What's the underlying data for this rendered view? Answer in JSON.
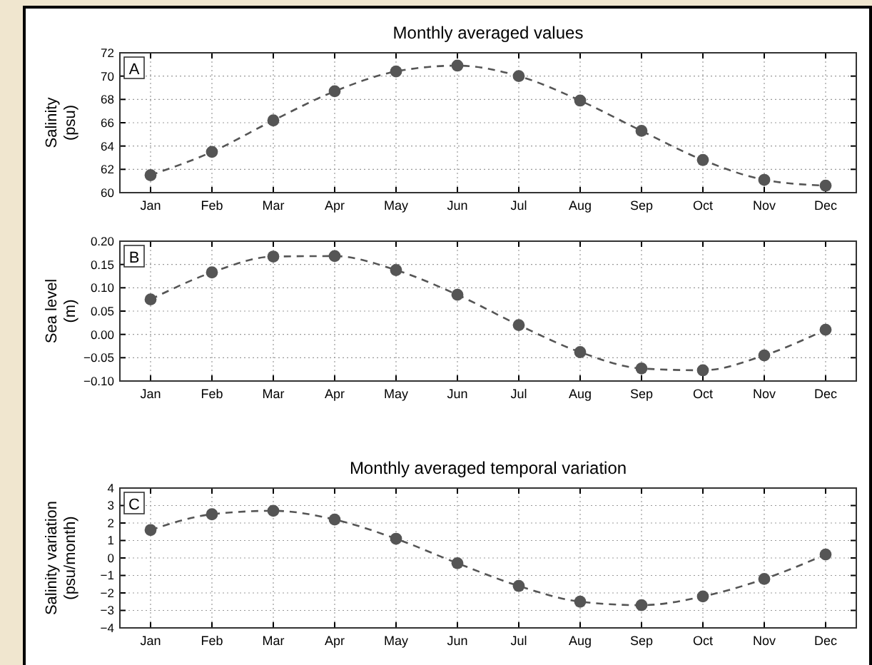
{
  "chart_data": [
    {
      "type": "line",
      "title": "Monthly averaged values",
      "ylabel": "Salinity\n(psu)",
      "annotations": [
        "A"
      ],
      "categories": [
        "Jan",
        "Feb",
        "Mar",
        "Apr",
        "May",
        "Jun",
        "Jul",
        "Aug",
        "Sep",
        "Oct",
        "Nov",
        "Dec"
      ],
      "series": [
        {
          "color": "#555555",
          "values": [
            61.5,
            63.5,
            66.2,
            68.7,
            70.4,
            70.9,
            70.0,
            67.9,
            65.3,
            62.8,
            61.1,
            60.6
          ]
        }
      ],
      "ylim": [
        60,
        72
      ],
      "yticks": [
        60,
        62,
        64,
        66,
        68,
        70,
        72
      ],
      "grid": true,
      "marker": "circle",
      "line_style": "dashed"
    },
    {
      "type": "line",
      "ylabel": "Sea level\n(m)",
      "annotations": [
        "B"
      ],
      "categories": [
        "Jan",
        "Feb",
        "Mar",
        "Apr",
        "May",
        "Jun",
        "Jul",
        "Aug",
        "Sep",
        "Oct",
        "Nov",
        "Dec"
      ],
      "series": [
        {
          "color": "#555555",
          "values": [
            0.075,
            0.133,
            0.167,
            0.168,
            0.138,
            0.085,
            0.02,
            -0.038,
            -0.073,
            -0.077,
            -0.045,
            0.01
          ]
        }
      ],
      "ylim": [
        -0.1,
        0.2
      ],
      "yticks": [
        {
          "value": -0.1,
          "label": "−0.10"
        },
        {
          "value": -0.05,
          "label": "−0.05"
        },
        {
          "value": 0,
          "label": "0.00"
        },
        {
          "value": 0.05,
          "label": "0.05"
        },
        {
          "value": 0.1,
          "label": "0.10"
        },
        {
          "value": 0.15,
          "label": "0.15"
        },
        {
          "value": 0.2,
          "label": "0.20"
        }
      ],
      "grid": true,
      "marker": "circle",
      "line_style": "dashed"
    },
    {
      "type": "line",
      "title": "Monthly averaged temporal variation",
      "ylabel": "Salinity variation\n(psu/month)",
      "annotations": [
        "C"
      ],
      "categories": [
        "Jan",
        "Feb",
        "Mar",
        "Apr",
        "May",
        "Jun",
        "Jul",
        "Aug",
        "Sep",
        "Oct",
        "Nov",
        "Dec"
      ],
      "series": [
        {
          "color": "#555555",
          "values": [
            1.6,
            2.5,
            2.7,
            2.2,
            1.1,
            -0.3,
            -1.6,
            -2.5,
            -2.7,
            -2.2,
            -1.2,
            0.2
          ]
        }
      ],
      "ylim": [
        -4,
        4
      ],
      "yticks": [
        {
          "value": -4,
          "label": "−4"
        },
        {
          "value": -3,
          "label": "−3"
        },
        {
          "value": -2,
          "label": "−2"
        },
        {
          "value": -1,
          "label": "−1"
        },
        0,
        1,
        2,
        3,
        4
      ],
      "grid": true,
      "marker": "circle",
      "line_style": "dashed"
    }
  ]
}
